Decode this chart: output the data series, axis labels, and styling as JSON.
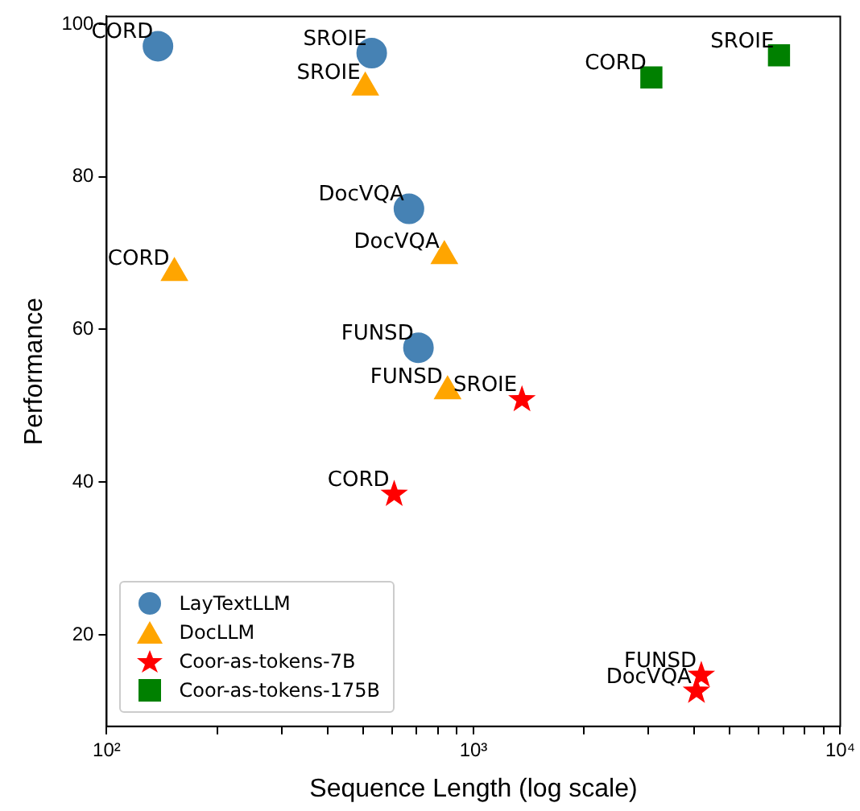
{
  "chart_data": {
    "type": "scatter",
    "xlabel": "Sequence Length (log scale)",
    "ylabel": "Performance",
    "log": "x",
    "grid": false,
    "legend": "bottom left",
    "xlim": [
      100,
      10000
    ],
    "xticks": [
      {
        "value": 100,
        "label": "10²"
      },
      {
        "value": 200,
        "label": null
      },
      {
        "value": 300,
        "label": null
      },
      {
        "value": 400,
        "label": null
      },
      {
        "value": 500,
        "label": null
      },
      {
        "value": 600,
        "label": null
      },
      {
        "value": 700,
        "label": null
      },
      {
        "value": 800,
        "label": null
      },
      {
        "value": 900,
        "label": null
      },
      {
        "value": 1000,
        "label": "10³"
      },
      {
        "value": 2000,
        "label": null
      },
      {
        "value": 3000,
        "label": null
      },
      {
        "value": 4000,
        "label": null
      },
      {
        "value": 5000,
        "label": null
      },
      {
        "value": 6000,
        "label": null
      },
      {
        "value": 7000,
        "label": null
      },
      {
        "value": 8000,
        "label": null
      },
      {
        "value": 9000,
        "label": null
      },
      {
        "value": 10000,
        "label": "10⁴"
      }
    ],
    "ylim": [
      8,
      101
    ],
    "yticks": [
      20,
      40,
      60,
      80,
      100
    ],
    "series": [
      {
        "name": "LayTextLLM",
        "color": "#4682b4",
        "marker": "circle",
        "x": [
          138,
          528,
          667,
          708
        ],
        "values": [
          97.1,
          96.2,
          75.8,
          57.6
        ]
      },
      {
        "name": "DocLLM",
        "color": "#ffa500",
        "marker": "triangle",
        "x": [
          507,
          153,
          833,
          850
        ],
        "values": [
          91.7,
          67.4,
          69.6,
          51.9
        ]
      },
      {
        "name": "Coor-as-tokens-7B",
        "color": "#ff0000",
        "marker": "star",
        "x": [
          1356,
          608,
          4180,
          4055
        ],
        "values": [
          50.8,
          38.4,
          14.7,
          12.6
        ]
      },
      {
        "name": "Coor-as-tokens-175B",
        "color": "#008000",
        "marker": "square",
        "x": [
          3055,
          6807
        ],
        "values": [
          93.0,
          95.9
        ]
      }
    ],
    "annotations": [
      {
        "text": "CORD",
        "x": 138,
        "y": 97.1
      },
      {
        "text": "SROIE",
        "x": 528,
        "y": 96.2
      },
      {
        "text": "DocVQA",
        "x": 667,
        "y": 75.8
      },
      {
        "text": "FUNSD",
        "x": 708,
        "y": 57.6
      },
      {
        "text": "SROIE",
        "x": 507,
        "y": 91.7
      },
      {
        "text": "CORD",
        "x": 153,
        "y": 67.4
      },
      {
        "text": "DocVQA",
        "x": 833,
        "y": 69.6
      },
      {
        "text": "FUNSD",
        "x": 850,
        "y": 51.9
      },
      {
        "text": "SROIE",
        "x": 1356,
        "y": 50.8
      },
      {
        "text": "CORD",
        "x": 608,
        "y": 38.4
      },
      {
        "text": "FUNSD",
        "x": 4180,
        "y": 14.7
      },
      {
        "text": "DocVQA",
        "x": 4055,
        "y": 12.6
      },
      {
        "text": "CORD",
        "x": 3055,
        "y": 93.0
      },
      {
        "text": "SROIE",
        "x": 6807,
        "y": 95.9
      }
    ]
  }
}
